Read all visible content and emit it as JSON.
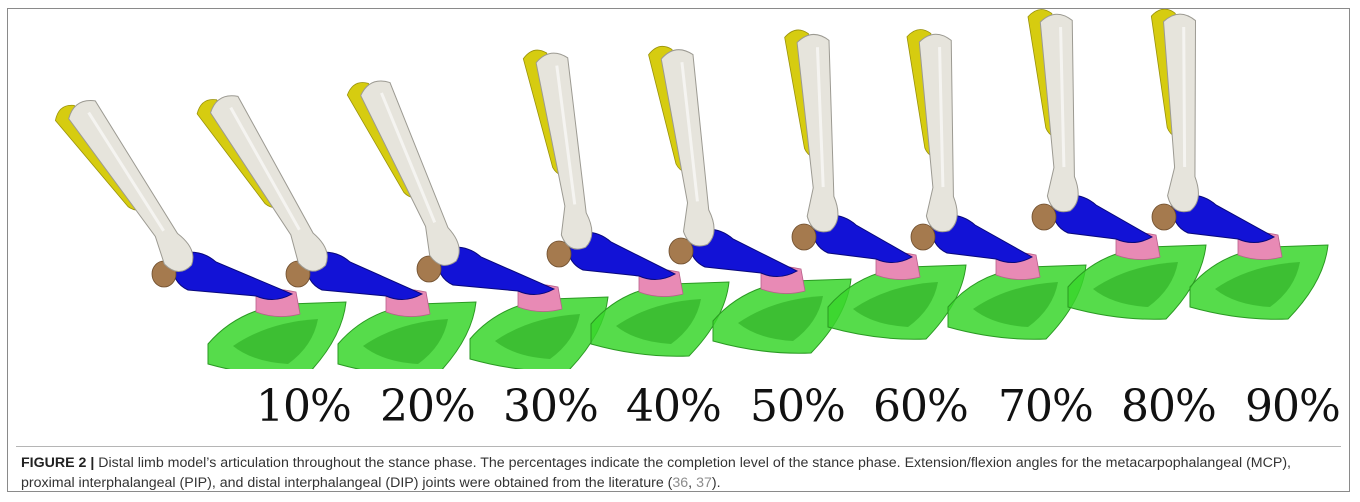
{
  "figure": {
    "label": "FIGURE 2 |",
    "caption": {
      "text_before_refs": " Distal limb model’s articulation throughout the stance phase. The percentages indicate the completion level of the stance phase. Extension/flexion angles for the metacarpophalangeal (MCP), proximal interphalangeal (PIP), and distal interphalangeal (DIP) joints were obtained from the literature (",
      "ref_1": "36",
      "separator": ", ",
      "ref_2": "37",
      "text_after_refs": ")."
    },
    "stance_labels": [
      "10%",
      "20%",
      "30%",
      "40%",
      "50%",
      "60%",
      "70%",
      "80%",
      "90%"
    ],
    "colors": {
      "cannon_bone": "#e6e4dc",
      "splint_bone": "#d6cc10",
      "splint_bone_posterior": "#e01ce6",
      "proximal_sesamoid": "#a57a4e",
      "proximal_phalanx": "#1212d6",
      "middle_phalanx": "#e88ab5",
      "hoof": "#38d62c"
    }
  }
}
